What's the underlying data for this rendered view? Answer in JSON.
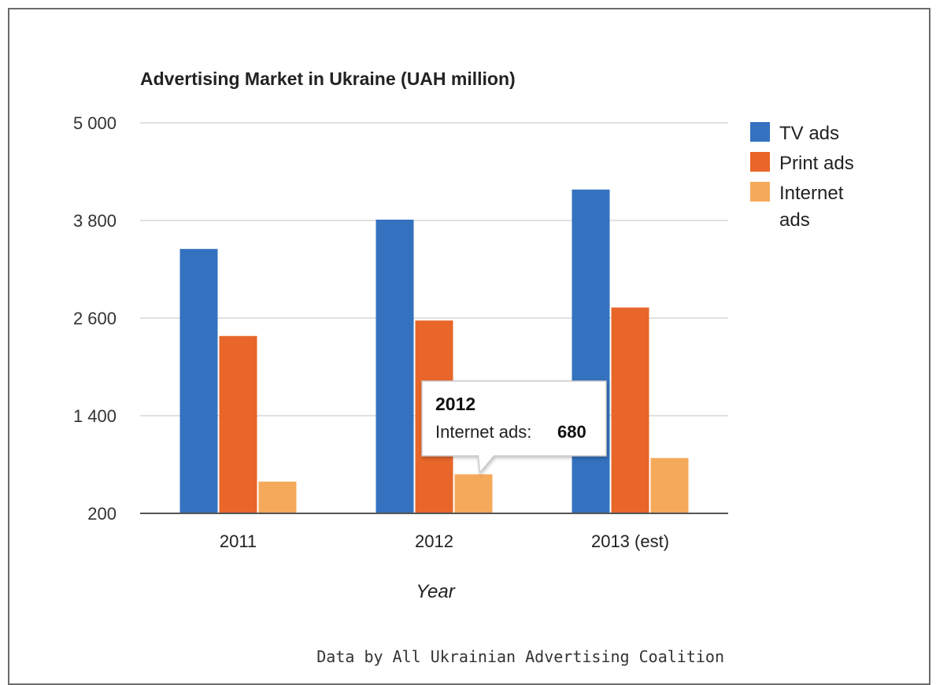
{
  "chart_data": {
    "type": "bar",
    "title": "Advertising Market in Ukraine (UAH million)",
    "xlabel": "Year",
    "ylabel": "",
    "categories": [
      "2011",
      "2012",
      "2013 (est)"
    ],
    "series": [
      {
        "name": "TV ads",
        "color": "#3472bf",
        "values": [
          3450,
          3810,
          4180
        ]
      },
      {
        "name": "Print ads",
        "color": "#e8662a",
        "values": [
          2380,
          2570,
          2730
        ]
      },
      {
        "name": "Internet ads",
        "color": "#f5a95a",
        "values": [
          590,
          680,
          880
        ]
      }
    ],
    "ylim": [
      200,
      5000
    ],
    "yticks": [
      200,
      1400,
      2600,
      3800,
      5000
    ],
    "ytick_labels": [
      "200",
      "1 400",
      "2 600",
      "3 800",
      "5 000"
    ],
    "grid": true,
    "legend_position": "right",
    "tooltip": {
      "title": "2012",
      "label": "Internet ads:",
      "value": "680",
      "category": "2012",
      "series": "Internet ads"
    },
    "source": "Data by All Ukrainian Advertising Coalition"
  }
}
